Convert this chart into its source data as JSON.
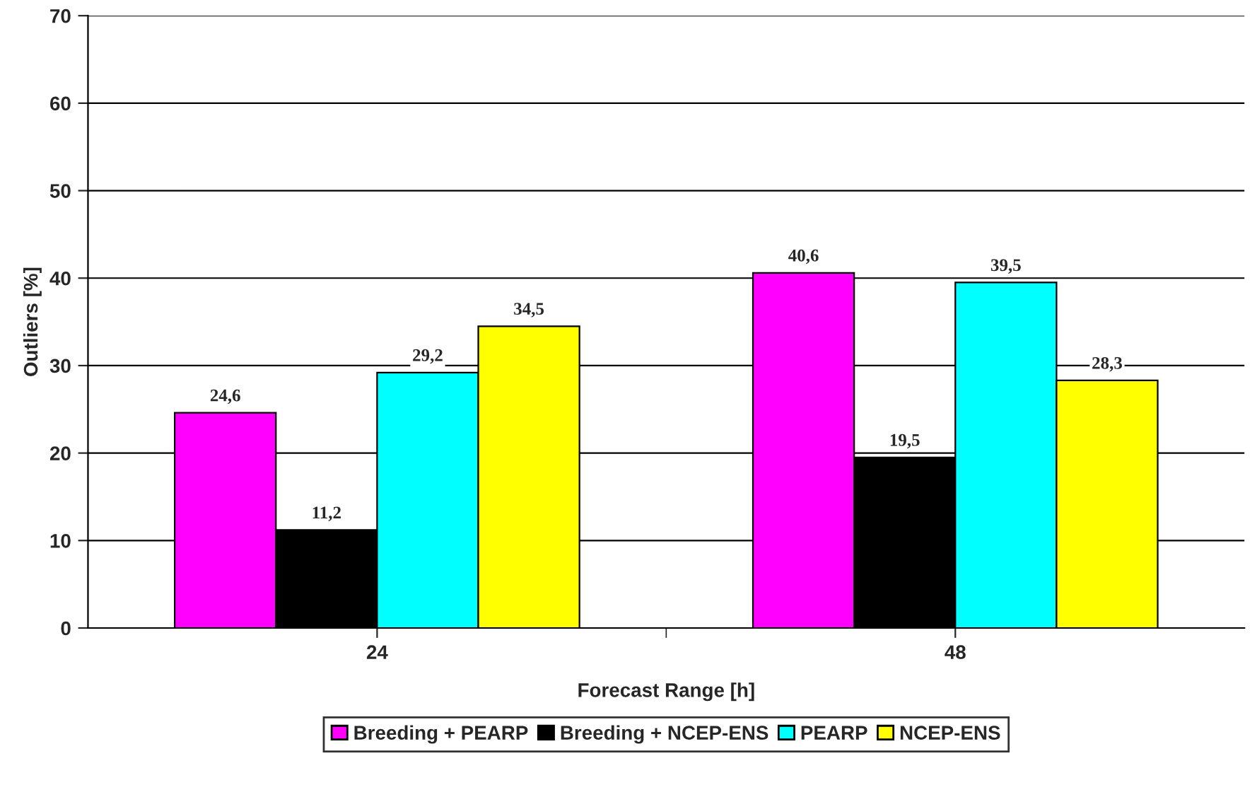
{
  "chart_data": {
    "type": "bar",
    "xlabel": "Forecast Range [h]",
    "ylabel": "Outliers [%]",
    "categories": [
      "24",
      "48"
    ],
    "series": [
      {
        "name": "Breeding + PEARP",
        "color": "#ff00ff",
        "values": [
          24.6,
          40.6
        ],
        "value_labels": [
          "24,6",
          "40,6"
        ]
      },
      {
        "name": "Breeding + NCEP-ENS",
        "color": "#000000",
        "values": [
          11.2,
          19.5
        ],
        "value_labels": [
          "11,2",
          "19,5"
        ]
      },
      {
        "name": "PEARP",
        "color": "#00ffff",
        "values": [
          29.2,
          39.5
        ],
        "value_labels": [
          "29,2",
          "39,5"
        ]
      },
      {
        "name": "NCEP-ENS",
        "color": "#ffff00",
        "values": [
          34.5,
          28.3
        ],
        "value_labels": [
          "34,5",
          "28,3"
        ]
      }
    ],
    "ylim": [
      0,
      70
    ],
    "yticks": [
      0,
      10,
      20,
      30,
      40,
      50,
      60,
      70
    ],
    "grid": "y",
    "legend": "bottom"
  }
}
